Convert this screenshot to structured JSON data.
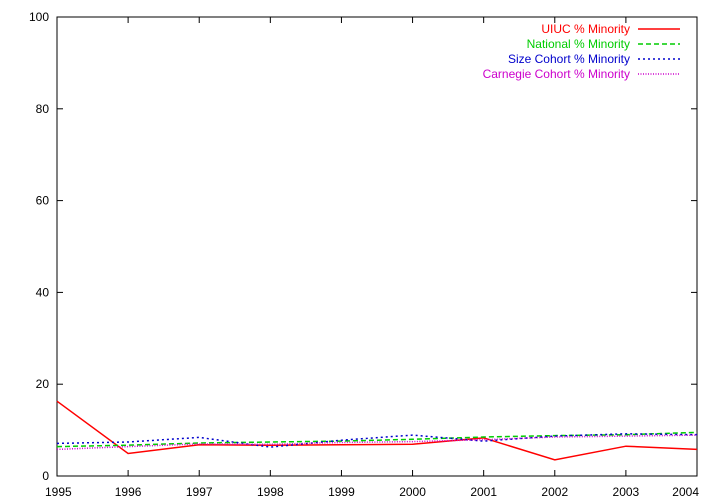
{
  "chart_data": {
    "type": "line",
    "title": "",
    "xlabel": "",
    "ylabel": "",
    "xlim": [
      1995,
      2004
    ],
    "ylim": [
      0,
      100
    ],
    "x": [
      1995,
      1996,
      1997,
      1998,
      1999,
      2000,
      2001,
      2002,
      2003,
      2004
    ],
    "x_ticks": [
      "1995",
      "1996",
      "1997",
      "1998",
      "1999",
      "2000",
      "2001",
      "2002",
      "2003",
      "2004"
    ],
    "y_ticks": [
      "0",
      "20",
      "40",
      "60",
      "80",
      "100"
    ],
    "grid": false,
    "legend_position": "top-right",
    "series": [
      {
        "name": "UIUC % Minority",
        "color": "#ff0000",
        "dash": "solid",
        "values": [
          16.3,
          4.9,
          6.8,
          6.7,
          6.8,
          6.9,
          8.3,
          3.5,
          6.5,
          5.8
        ]
      },
      {
        "name": "National % Minority",
        "color": "#00cc00",
        "dash": "dashed",
        "values": [
          6.4,
          6.7,
          7.2,
          7.4,
          7.6,
          8.0,
          8.5,
          8.8,
          9.0,
          9.5
        ]
      },
      {
        "name": "Size Cohort % Minority",
        "color": "#0000cc",
        "dash": "dotted",
        "values": [
          7.1,
          7.4,
          8.4,
          6.3,
          7.8,
          8.9,
          7.6,
          8.7,
          9.2,
          9.0
        ]
      },
      {
        "name": "Carnegie Cohort % Minority",
        "color": "#cc00cc",
        "dash": "fine-dotted",
        "values": [
          5.8,
          6.4,
          7.0,
          6.9,
          7.3,
          7.5,
          7.9,
          8.5,
          8.7,
          8.9
        ]
      }
    ]
  }
}
